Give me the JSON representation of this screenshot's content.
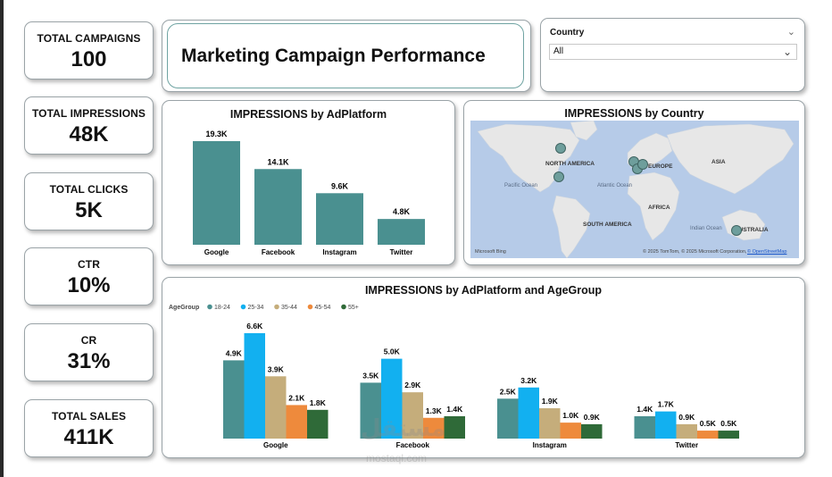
{
  "kpis": [
    {
      "label": "TOTAL CAMPAIGNS",
      "value": "100"
    },
    {
      "label": "TOTAL IMPRESSIONS",
      "value": "48K"
    },
    {
      "label": "TOTAL CLICKS",
      "value": "5K"
    },
    {
      "label": "CTR",
      "value": "10%"
    },
    {
      "label": "CR",
      "value": "31%"
    },
    {
      "label": "TOTAL SALES",
      "value": "411K"
    }
  ],
  "header": {
    "title": "Marketing Campaign Performance"
  },
  "filter": {
    "label": "Country",
    "value": "All"
  },
  "colors": {
    "teal": "#4a9090",
    "blue": "#12b0f0",
    "tan": "#c5ad7b",
    "orange": "#ee8a3c",
    "green": "#2f6a38",
    "land": "#e7e7e7",
    "ocean": "#b6cbe8"
  },
  "chart_data": [
    {
      "type": "bar",
      "title": "IMPRESSIONS by AdPlatform",
      "categories": [
        "Google",
        "Facebook",
        "Instagram",
        "Twitter"
      ],
      "values": [
        19.3,
        14.1,
        9.6,
        4.8
      ],
      "labels": [
        "19.3K",
        "14.1K",
        "9.6K",
        "4.8K"
      ],
      "ylim": [
        0,
        19.3
      ]
    },
    {
      "type": "bar",
      "title": "IMPRESSIONS by AdPlatform and AgeGroup",
      "legend_title": "AgeGroup",
      "categories": [
        "Google",
        "Facebook",
        "Instagram",
        "Twitter"
      ],
      "series": [
        {
          "name": "18-24",
          "values": [
            4.9,
            3.5,
            2.5,
            1.4
          ],
          "labels": [
            "4.9K",
            "3.5K",
            "2.5K",
            "1.4K"
          ]
        },
        {
          "name": "25-34",
          "values": [
            6.6,
            5.0,
            3.2,
            1.7
          ],
          "labels": [
            "6.6K",
            "5.0K",
            "3.2K",
            "1.7K"
          ]
        },
        {
          "name": "35-44",
          "values": [
            3.9,
            2.9,
            1.9,
            0.9
          ],
          "labels": [
            "3.9K",
            "2.9K",
            "1.9K",
            "0.9K"
          ]
        },
        {
          "name": "45-54",
          "values": [
            2.1,
            1.3,
            1.0,
            0.5
          ],
          "labels": [
            "2.1K",
            "1.3K",
            "1.0K",
            "0.5K"
          ]
        },
        {
          "name": "55+",
          "values": [
            1.8,
            1.4,
            0.9,
            0.5
          ],
          "labels": [
            "1.8K",
            "1.4K",
            "0.9K",
            "0.5K"
          ]
        }
      ],
      "ylim": [
        0,
        6.6
      ]
    }
  ],
  "map": {
    "title": "IMPRESSIONS by Country",
    "regions": [
      "NORTH AMERICA",
      "EUROPE",
      "ASIA",
      "AFRICA",
      "SOUTH AMERICA",
      "AUSTRALIA"
    ],
    "oceans": [
      "Pacific Ocean",
      "Atlantic Ocean",
      "Indian Ocean"
    ],
    "brand": "Microsoft Bing",
    "copyright": "© 2025 TomTom, © 2025 Microsoft Corporation,",
    "osm_link": "© OpenStreetMap"
  },
  "watermark": {
    "text": "مستقل",
    "domain": "mostaql.com"
  }
}
